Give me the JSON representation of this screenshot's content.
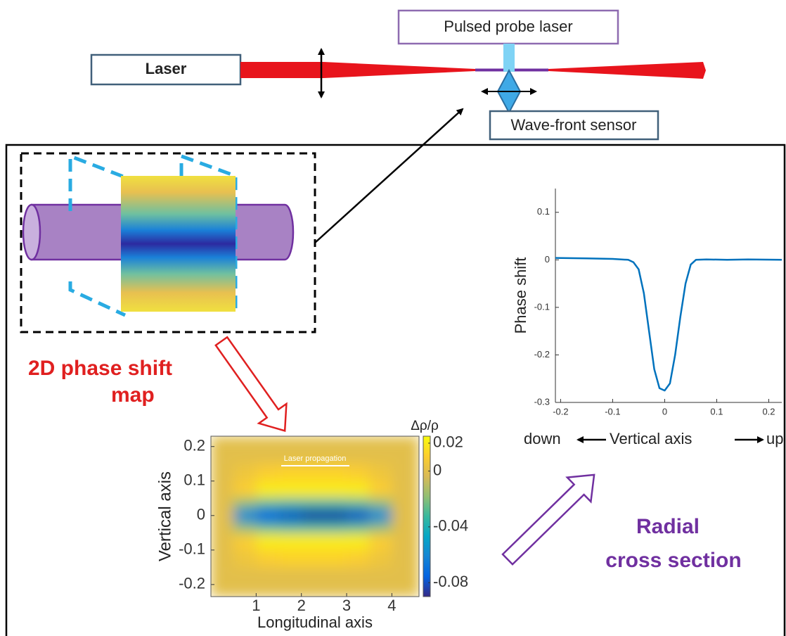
{
  "diagram": {
    "laser": "Laser",
    "probe_laser": "Pulsed probe laser",
    "sensor": "Wave-front sensor",
    "map_caption": [
      "2D phase shift",
      "map"
    ],
    "section_caption": [
      "Radial",
      "cross section"
    ],
    "direction": {
      "down": "down",
      "axis": "Vertical axis",
      "up": "up"
    }
  },
  "chart_data": [
    {
      "type": "heatmap",
      "annotation": "Laser propagation",
      "xlabel": "Longitudinal axis",
      "ylabel": "Vertical axis",
      "colorbar_label": "Δρ/ρ",
      "xbins": [
        0,
        0.5,
        1,
        1.5,
        2,
        2.5,
        3,
        3.5,
        4,
        4.6
      ],
      "ybins": [
        0.23,
        0.15,
        0.1,
        0.05,
        0.02,
        -0.02,
        -0.05,
        -0.1,
        -0.15,
        -0.235
      ],
      "values": [
        [
          0,
          0,
          0,
          0,
          0,
          0,
          0,
          0,
          0
        ],
        [
          0,
          0.005,
          0.01,
          0.012,
          0.012,
          0.012,
          0.01,
          0.005,
          0
        ],
        [
          0,
          0.01,
          0.02,
          0.02,
          0.02,
          0.02,
          0.02,
          0.01,
          0
        ],
        [
          0,
          -0.02,
          -0.03,
          -0.035,
          -0.035,
          -0.035,
          -0.03,
          -0.02,
          0
        ],
        [
          0,
          -0.06,
          -0.075,
          -0.08,
          -0.085,
          -0.085,
          -0.08,
          -0.06,
          0
        ],
        [
          0,
          -0.02,
          -0.03,
          -0.035,
          -0.035,
          -0.035,
          -0.03,
          -0.02,
          0
        ],
        [
          0,
          0.01,
          0.02,
          0.02,
          0.02,
          0.02,
          0.02,
          0.01,
          0
        ],
        [
          0,
          0.005,
          0.01,
          0.012,
          0.012,
          0.012,
          0.01,
          0.005,
          0
        ],
        [
          0,
          0,
          0,
          0,
          0,
          0,
          0,
          0,
          0
        ]
      ],
      "xlim": [
        0,
        4.6
      ],
      "ylim": [
        -0.235,
        0.23
      ],
      "xticks": [
        1,
        2,
        3,
        4
      ],
      "yticks": [
        0.2,
        0.1,
        0,
        -0.1,
        -0.2
      ],
      "clim": [
        -0.09,
        0.025
      ],
      "cticks": [
        0.02,
        0,
        -0.04,
        -0.08
      ],
      "colormap": [
        "#352a87",
        "#0363e1",
        "#1485d4",
        "#06a7c6",
        "#38b99e",
        "#92bf73",
        "#d9ba56",
        "#fcce2e",
        "#f9fb0e"
      ]
    },
    {
      "type": "line",
      "ylabel": "Phase shift",
      "color": "#0072bd",
      "x": [
        -0.21,
        -0.15,
        -0.1,
        -0.07,
        -0.06,
        -0.05,
        -0.04,
        -0.03,
        -0.02,
        -0.01,
        0,
        0.01,
        0.02,
        0.03,
        0.04,
        0.05,
        0.06,
        0.08,
        0.12,
        0.16,
        0.225
      ],
      "values": [
        0.004,
        0.003,
        0.002,
        0,
        -0.005,
        -0.02,
        -0.07,
        -0.15,
        -0.23,
        -0.27,
        -0.275,
        -0.26,
        -0.2,
        -0.12,
        -0.05,
        -0.01,
        0,
        0.001,
        0,
        0.001,
        0
      ],
      "xlim": [
        -0.21,
        0.225
      ],
      "ylim": [
        -0.3,
        0.15
      ],
      "xticks": [
        -0.2,
        -0.1,
        0,
        0.1,
        0.2
      ],
      "yticks": [
        0.1,
        0,
        -0.1,
        -0.2,
        -0.3
      ]
    }
  ]
}
